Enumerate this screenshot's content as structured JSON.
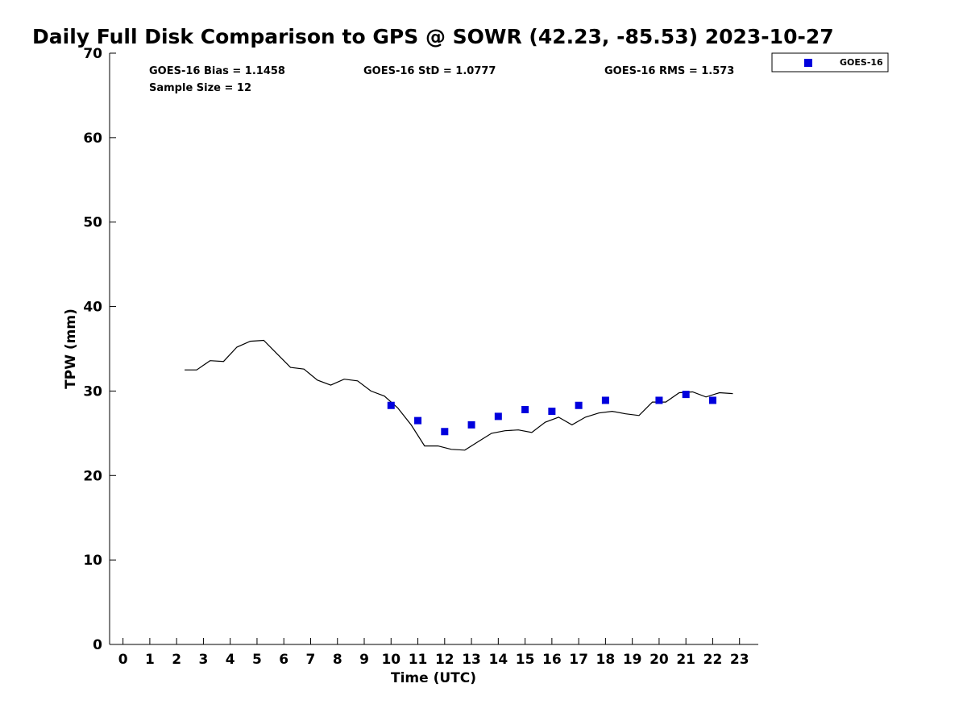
{
  "chart_data": {
    "type": "scatter",
    "title": "Daily Full Disk Comparison to GPS @ SOWR (42.23, -85.53) 2023-10-27",
    "xlabel": "Time (UTC)",
    "ylabel": "TPW (mm)",
    "xlim": [
      -0.5,
      23.7
    ],
    "ylim": [
      0,
      70
    ],
    "xticks": [
      "0",
      "1",
      "2",
      "3",
      "4",
      "5",
      "6",
      "7",
      "8",
      "9",
      "10",
      "11",
      "12",
      "13",
      "14",
      "15",
      "16",
      "17",
      "18",
      "19",
      "20",
      "21",
      "22",
      "23"
    ],
    "yticks": [
      "0",
      "10",
      "20",
      "30",
      "40",
      "50",
      "60",
      "70"
    ],
    "grid": false,
    "legend_position": "top-right",
    "stats": {
      "bias": "GOES-16 Bias = 1.1458",
      "std": "GOES-16 StD = 1.0777",
      "rms": "GOES-16 RMS = 1.573",
      "sample_size": "Sample Size = 12"
    },
    "series": [
      {
        "kind": "line",
        "color": "#000000",
        "x": [
          2.3,
          2.75,
          3.25,
          3.75,
          4.25,
          4.75,
          5.25,
          5.75,
          6.25,
          6.75,
          7.25,
          7.75,
          8.25,
          8.75,
          9.25,
          9.75,
          10.25,
          10.75,
          11.25,
          11.75,
          12.25,
          12.75,
          13.25,
          13.75,
          14.25,
          14.75,
          15.25,
          15.75,
          16.25,
          16.75,
          17.25,
          17.75,
          18.25,
          18.75,
          19.25,
          19.75,
          20.25,
          20.75,
          21.25,
          21.75,
          22.25,
          22.75
        ],
        "values": [
          32.5,
          32.5,
          33.6,
          33.5,
          35.2,
          35.9,
          36.0,
          34.4,
          32.8,
          32.6,
          31.3,
          30.7,
          31.4,
          31.2,
          30.0,
          29.4,
          28.0,
          26.0,
          23.5,
          23.5,
          23.1,
          23.0,
          24.0,
          25.0,
          25.3,
          25.4,
          25.1,
          26.3,
          26.9,
          26.0,
          26.9,
          27.4,
          27.6,
          27.3,
          27.1,
          28.7,
          28.7,
          29.8,
          29.9,
          29.3,
          29.8,
          29.7
        ]
      },
      {
        "name": "GOES-16",
        "kind": "marker",
        "color": "#0000dd",
        "x": [
          10,
          11,
          12,
          13,
          14,
          15,
          16,
          17,
          18,
          20,
          21,
          22
        ],
        "values": [
          28.3,
          26.5,
          25.2,
          26.0,
          27.0,
          27.8,
          27.6,
          28.3,
          28.9,
          28.9,
          29.6,
          28.9
        ]
      }
    ]
  }
}
